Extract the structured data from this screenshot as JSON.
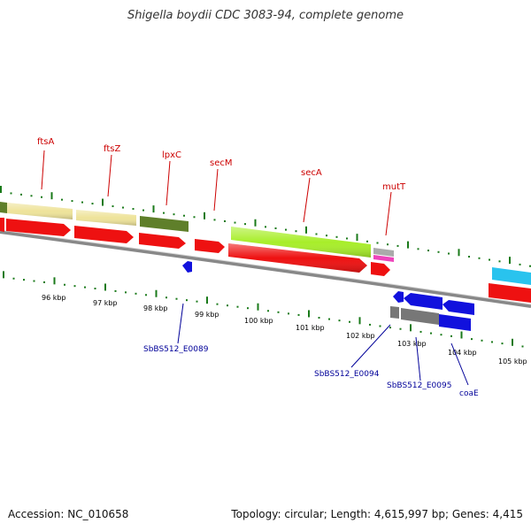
{
  "title": "Shigella boydii CDC 3083-94, complete genome",
  "footer": {
    "accession": "Accession: NC_010658",
    "summary": "Topology: circular; Length: 4,615,997 bp; Genes: 4,415"
  },
  "colors": {
    "cds_red": "#ee1111",
    "gene_khaki": "#eee39a",
    "gene_olive": "#5f7f2a",
    "gene_lime": "#a8ee2a",
    "gene_blue": "#1111dd",
    "gene_grey": "#777777",
    "gene_cyan": "#29c3ee",
    "gene_pink": "#ee44bb",
    "tick_green": "#1a7a1a",
    "backbone": "#888888"
  },
  "gene_labels_top": [
    "ftsA",
    "ftsZ",
    "lpxC",
    "secM",
    "secA",
    "mutT"
  ],
  "gene_labels_bottom": [
    "SbBS512_E0089",
    "SbBS512_E0094",
    "SbBS512_E0095",
    "coaE"
  ],
  "kbp_labels": [
    "96 kbp",
    "97 kbp",
    "98 kbp",
    "99 kbp",
    "100 kbp",
    "101 kbp",
    "102 kbp",
    "103 kbp",
    "104 kbp",
    "105 kbp"
  ]
}
